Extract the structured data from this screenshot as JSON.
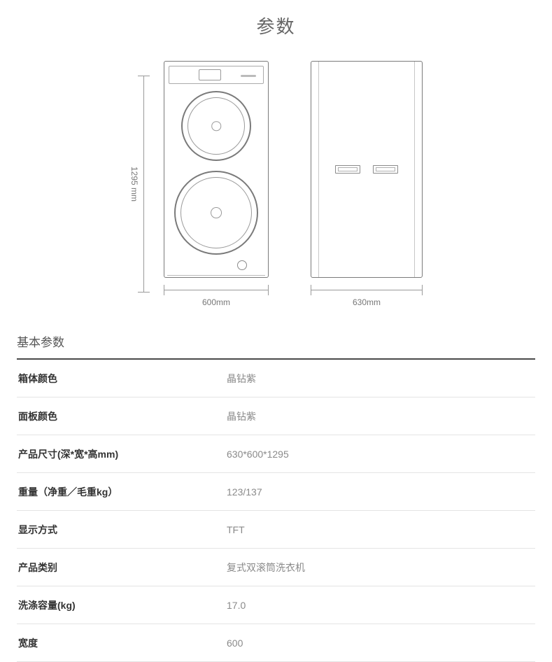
{
  "page_title": "参数",
  "diagram": {
    "height_label": "1295 mm",
    "front_width_label": "600mm",
    "side_width_label": "630mm"
  },
  "section_title": "基本参数",
  "specs": [
    {
      "label": "箱体颜色",
      "value": "晶钻紫"
    },
    {
      "label": "面板颜色",
      "value": "晶钻紫"
    },
    {
      "label": "产品尺寸(深*宽*高mm)",
      "value": "630*600*1295"
    },
    {
      "label": "重量（净重／毛重kg）",
      "value": "123/137"
    },
    {
      "label": "显示方式",
      "value": "TFT"
    },
    {
      "label": "产品类别",
      "value": "复式双滚筒洗衣机"
    },
    {
      "label": "洗涤容量(kg)",
      "value": "17.0"
    },
    {
      "label": "宽度",
      "value": "600"
    }
  ]
}
